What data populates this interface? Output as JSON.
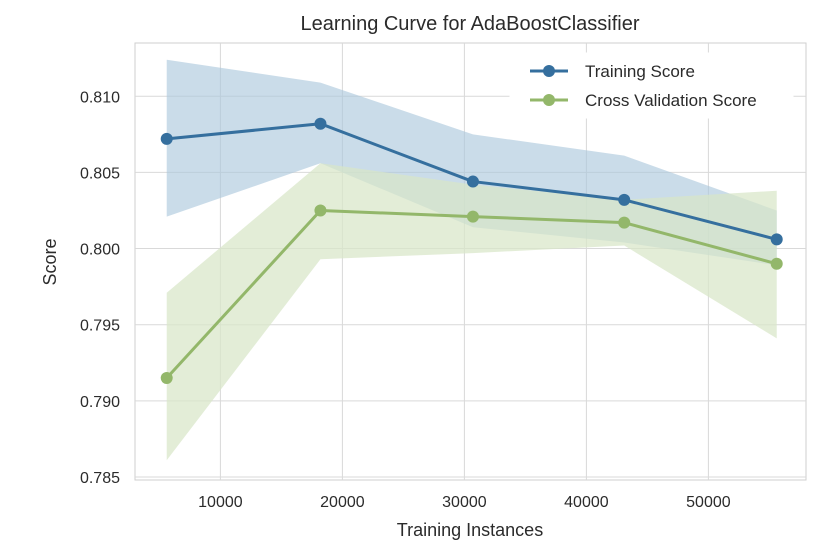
{
  "chart_data": {
    "type": "line",
    "title": "Learning Curve for AdaBoostClassifier",
    "xlabel": "Training Instances",
    "ylabel": "Score",
    "xlim": [
      3000,
      58000
    ],
    "ylim": [
      0.7848,
      0.8135
    ],
    "x_ticks": [
      10000,
      20000,
      30000,
      40000,
      50000
    ],
    "x_tick_labels": [
      "10000",
      "20000",
      "30000",
      "40000",
      "50000"
    ],
    "y_ticks": [
      0.785,
      0.79,
      0.795,
      0.8,
      0.805,
      0.81
    ],
    "y_tick_labels": [
      "0.785",
      "0.790",
      "0.795",
      "0.800",
      "0.805",
      "0.810"
    ],
    "grid": true,
    "legend_position": "top-right",
    "x": [
      5600,
      18200,
      30700,
      43100,
      55600
    ],
    "series": [
      {
        "name": "Training Score",
        "color": "#356f9e",
        "band_color": "#a9c7dc",
        "values": [
          0.8072,
          0.8082,
          0.8044,
          0.8032,
          0.8006
        ],
        "upper": [
          0.8124,
          0.8109,
          0.8075,
          0.8061,
          0.8025
        ],
        "lower": [
          0.8021,
          0.8056,
          0.8014,
          0.8004,
          0.7989
        ]
      },
      {
        "name": "Cross Validation Score",
        "color": "#93b76a",
        "band_color": "#d8e6c7",
        "values": [
          0.7915,
          0.8025,
          0.8021,
          0.8017,
          0.799
        ],
        "upper": [
          0.7971,
          0.8056,
          0.8042,
          0.8032,
          0.8038
        ],
        "lower": [
          0.7861,
          0.7993,
          0.7997,
          0.8002,
          0.7941
        ]
      }
    ]
  }
}
